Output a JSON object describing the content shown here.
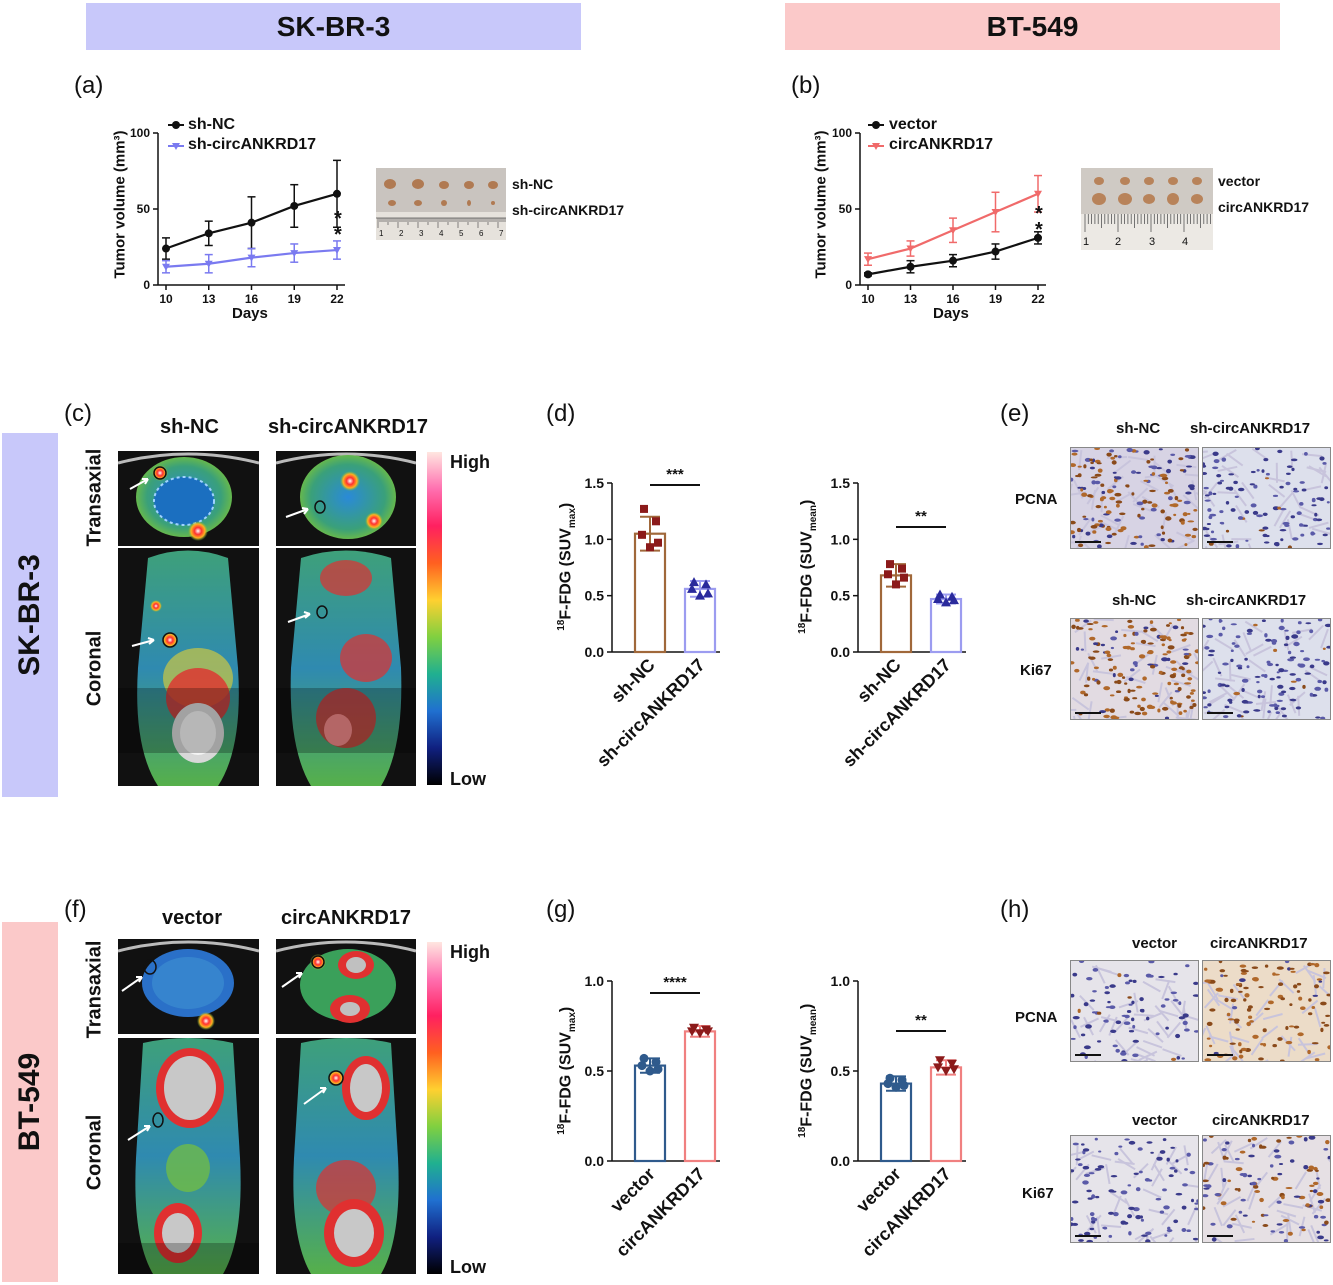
{
  "colors": {
    "skbr3_banner": "#c8c8fa",
    "bt549_banner": "#fbc9c9",
    "black": "#111111",
    "blue_series": "#7a7af0",
    "red_series": "#f06a6a",
    "brown_bar": "#a0683a",
    "brown_point": "#8b1a1a",
    "lavender_bar": "#9c9cf0",
    "navy_point": "#2a2a9c",
    "navy_bar": "#2f5a8c",
    "pink_bar": "#f08080"
  },
  "banners": {
    "skbr3_top": "SK-BR-3",
    "bt549_top": "BT-549",
    "skbr3_side": "SK-BR-3",
    "bt549_side": "BT-549"
  },
  "panels": {
    "a": "(a)",
    "b": "(b)",
    "c": "(c)",
    "d": "(d)",
    "e": "(e)",
    "f": "(f)",
    "g": "(g)",
    "h": "(h)"
  },
  "panel_a": {
    "legend": [
      "sh-NC",
      "sh-circANKRD17"
    ],
    "photo_labels": [
      "sh-NC",
      "sh-circANKRD17"
    ],
    "ruler_ticks": [
      "1",
      "2",
      "3",
      "4",
      "5",
      "6",
      "7"
    ]
  },
  "panel_b": {
    "legend": [
      "vector",
      "circANKRD17"
    ],
    "photo_labels": [
      "vector",
      "circANKRD17"
    ],
    "ruler_ticks": [
      "1",
      "2",
      "3",
      "4"
    ]
  },
  "panel_c": {
    "col_labels": [
      "sh-NC",
      "sh-circANKRD17"
    ],
    "row_labels": [
      "Transaxial",
      "Coronal"
    ],
    "scale_high": "High",
    "scale_low": "Low"
  },
  "panel_f": {
    "col_labels": [
      "vector",
      "circANKRD17"
    ],
    "row_labels": [
      "Transaxial",
      "Coronal"
    ],
    "scale_high": "High",
    "scale_low": "Low"
  },
  "panel_e": {
    "top_cols": [
      "sh-NC",
      "sh-circANKRD17"
    ],
    "bottom_cols": [
      "sh-NC",
      "sh-circANKRD17"
    ],
    "rows": [
      "PCNA",
      "Ki67"
    ]
  },
  "panel_h": {
    "top_cols": [
      "vector",
      "circANKRD17"
    ],
    "bottom_cols": [
      "vector",
      "circANKRD17"
    ],
    "rows": [
      "PCNA",
      "Ki67"
    ]
  },
  "chart_data": [
    {
      "id": "a",
      "type": "line",
      "xlabel": "Days",
      "ylabel": "Tumor volume (mm³)",
      "x": [
        10,
        13,
        16,
        19,
        22
      ],
      "xticks": [
        "10",
        "13",
        "16",
        "19",
        "22"
      ],
      "yticks": [
        "0",
        "50",
        "100"
      ],
      "ylim": [
        0,
        100
      ],
      "series": [
        {
          "name": "sh-NC",
          "values": [
            24,
            34,
            41,
            52,
            60
          ],
          "errors": [
            7,
            8,
            17,
            14,
            22
          ]
        },
        {
          "name": "sh-circANKRD17",
          "values": [
            12,
            14,
            18,
            21,
            23
          ],
          "errors": [
            4,
            6,
            6,
            6,
            6
          ]
        }
      ],
      "annotation": "**"
    },
    {
      "id": "b",
      "type": "line",
      "xlabel": "Days",
      "ylabel": "Tumor volume (mm³)",
      "x": [
        10,
        13,
        16,
        19,
        22
      ],
      "xticks": [
        "10",
        "13",
        "16",
        "19",
        "22"
      ],
      "yticks": [
        "0",
        "50",
        "100"
      ],
      "ylim": [
        0,
        100
      ],
      "series": [
        {
          "name": "vector",
          "values": [
            7,
            12,
            16,
            22,
            31
          ],
          "errors": [
            1,
            4,
            4,
            5,
            4
          ]
        },
        {
          "name": "circANKRD17",
          "values": [
            17,
            24,
            36,
            48,
            60
          ],
          "errors": [
            4,
            5,
            8,
            13,
            12
          ]
        }
      ],
      "annotation": "**"
    },
    {
      "id": "d1",
      "type": "bar",
      "ylabel": "18F-FDG (SUVmax)",
      "categories": [
        "sh-NC",
        "sh-circANKRD17"
      ],
      "values": [
        1.05,
        0.56
      ],
      "errors": [
        0.15,
        0.07
      ],
      "points": [
        [
          1.27,
          1.16,
          1.04,
          0.97,
          0.93
        ],
        [
          0.62,
          0.6,
          0.56,
          0.52,
          0.5
        ]
      ],
      "yticks": [
        "0.0",
        "0.5",
        "1.0",
        "1.5"
      ],
      "ylim": [
        0,
        1.5
      ],
      "significance": "***"
    },
    {
      "id": "d2",
      "type": "bar",
      "ylabel": "18F-FDG (SUVmean)",
      "categories": [
        "sh-NC",
        "sh-circANKRD17"
      ],
      "values": [
        0.68,
        0.47
      ],
      "errors": [
        0.1,
        0.04
      ],
      "points": [
        [
          0.78,
          0.74,
          0.69,
          0.66,
          0.6
        ],
        [
          0.51,
          0.49,
          0.47,
          0.46,
          0.44
        ]
      ],
      "yticks": [
        "0.0",
        "0.5",
        "1.0",
        "1.5"
      ],
      "ylim": [
        0,
        1.5
      ],
      "significance": "**"
    },
    {
      "id": "g1",
      "type": "bar",
      "ylabel": "18F-FDG (SUVmax)",
      "categories": [
        "vector",
        "circANKRD17"
      ],
      "values": [
        0.53,
        0.72
      ],
      "errors": [
        0.04,
        0.03
      ],
      "points": [
        [
          0.57,
          0.55,
          0.53,
          0.51,
          0.5
        ],
        [
          0.74,
          0.73,
          0.72,
          0.72,
          0.71
        ]
      ],
      "yticks": [
        "0.0",
        "0.5",
        "1.0"
      ],
      "ylim": [
        0,
        1.0
      ],
      "significance": "****"
    },
    {
      "id": "g2",
      "type": "bar",
      "ylabel": "18F-FDG (SUVmean)",
      "categories": [
        "vector",
        "circANKRD17"
      ],
      "values": [
        0.43,
        0.52
      ],
      "errors": [
        0.04,
        0.04
      ],
      "points": [
        [
          0.46,
          0.45,
          0.43,
          0.42,
          0.41
        ],
        [
          0.56,
          0.54,
          0.52,
          0.51,
          0.5
        ]
      ],
      "yticks": [
        "0.0",
        "0.5",
        "1.0"
      ],
      "ylim": [
        0,
        1.0
      ],
      "significance": "**"
    }
  ]
}
